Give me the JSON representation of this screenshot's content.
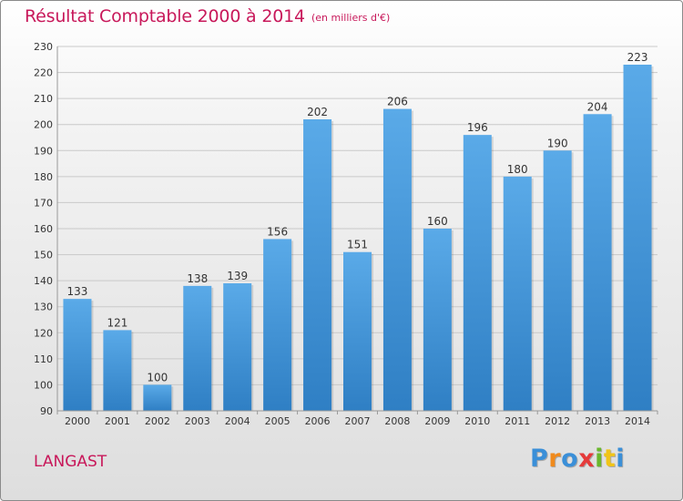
{
  "header": {
    "title": "Résultat Comptable 2000 à 2014",
    "subtitle": "(en milliers d'€)"
  },
  "footer": {
    "place": "LANGAST",
    "logo": {
      "letters": [
        "P",
        "r",
        "o",
        "x",
        "i",
        "t",
        "i"
      ],
      "colors": [
        "#3a8fd8",
        "#f08a1c",
        "#3a8fd8",
        "#e53a3a",
        "#6ab82c",
        "#f0c419",
        "#3a8fd8"
      ]
    }
  },
  "chart_data": {
    "type": "bar",
    "title": "Résultat Comptable 2000 à 2014",
    "subtitle": "(en milliers d'€)",
    "categories": [
      "2000",
      "2001",
      "2002",
      "2003",
      "2004",
      "2005",
      "2006",
      "2007",
      "2008",
      "2009",
      "2010",
      "2011",
      "2012",
      "2013",
      "2014"
    ],
    "values": [
      133,
      121,
      100,
      138,
      139,
      156,
      202,
      151,
      206,
      160,
      196,
      180,
      190,
      204,
      223
    ],
    "ylim": [
      90,
      230
    ],
    "yticks": [
      90,
      100,
      110,
      120,
      130,
      140,
      150,
      160,
      170,
      180,
      190,
      200,
      210,
      220,
      230
    ],
    "grid": true,
    "bar_color": "#3d8fd6",
    "bar_color_light": "#5aaae8"
  }
}
